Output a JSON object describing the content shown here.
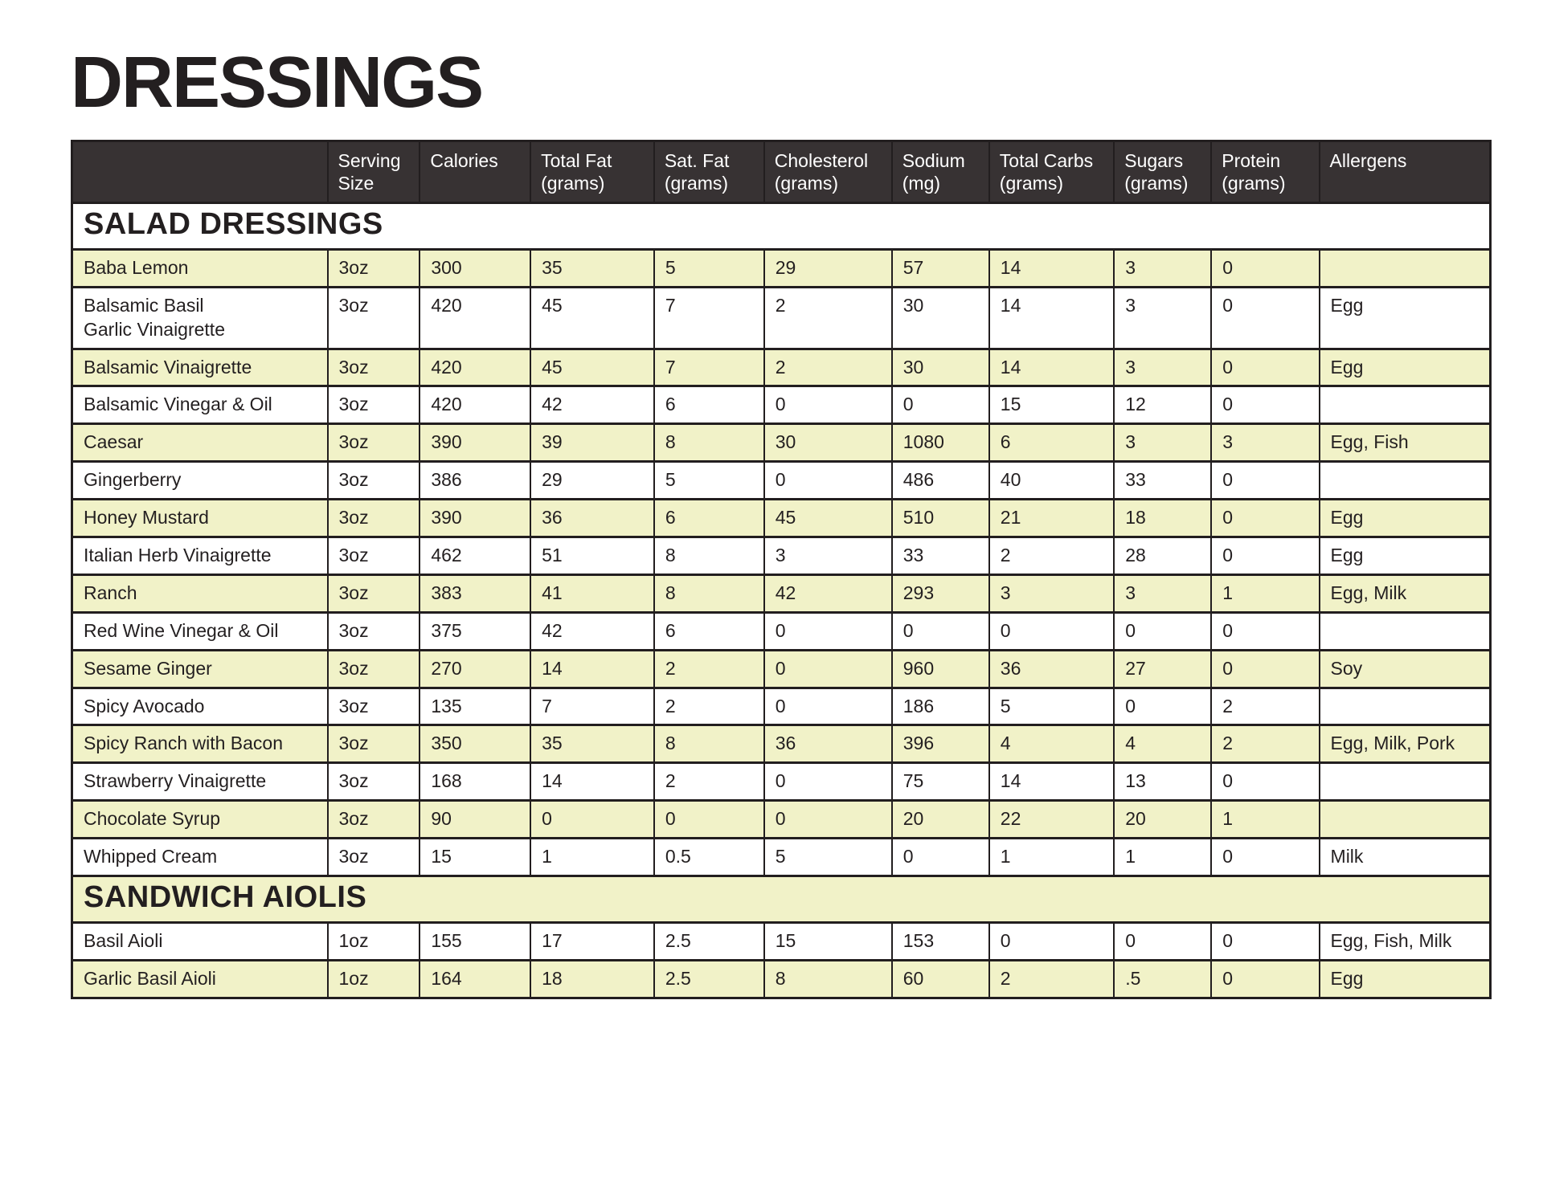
{
  "page_title": "DRESSINGS",
  "colors": {
    "header_bg": "#373233",
    "header_text": "#ffffff",
    "row_yellow": "#f1f2c8",
    "row_white": "#ffffff",
    "border": "#221e1f",
    "text": "#231f20"
  },
  "table": {
    "headers": [
      {
        "label": ""
      },
      {
        "label": "Serving Size"
      },
      {
        "label": "Calories"
      },
      {
        "label": "Total Fat (grams)"
      },
      {
        "label": "Sat. Fat (grams)"
      },
      {
        "label": "Cholesterol (grams)"
      },
      {
        "label": "Sodium (mg)"
      },
      {
        "label": "Total Carbs (grams)"
      },
      {
        "label": "Sugars (grams)"
      },
      {
        "label": "Protein (grams)"
      },
      {
        "label": "Allergens"
      }
    ],
    "column_keys": [
      "name",
      "serving_size",
      "calories",
      "total_fat",
      "sat_fat",
      "cholesterol",
      "sodium",
      "total_carbs",
      "sugars",
      "protein",
      "allergens"
    ],
    "sections": [
      {
        "label": "SALAD DRESSINGS",
        "rows": [
          {
            "name": "Baba Lemon",
            "serving_size": "3oz",
            "calories": "300",
            "total_fat": "35",
            "sat_fat": "5",
            "cholesterol": "29",
            "sodium": "57",
            "total_carbs": "14",
            "sugars": "3",
            "protein": "0",
            "allergens": ""
          },
          {
            "name": "Balsamic Basil\nGarlic Vinaigrette",
            "serving_size": "3oz",
            "calories": "420",
            "total_fat": "45",
            "sat_fat": "7",
            "cholesterol": "2",
            "sodium": "30",
            "total_carbs": "14",
            "sugars": "3",
            "protein": "0",
            "allergens": "Egg"
          },
          {
            "name": "Balsamic Vinaigrette",
            "serving_size": "3oz",
            "calories": "420",
            "total_fat": "45",
            "sat_fat": "7",
            "cholesterol": "2",
            "sodium": "30",
            "total_carbs": "14",
            "sugars": "3",
            "protein": "0",
            "allergens": "Egg"
          },
          {
            "name": "Balsamic Vinegar & Oil",
            "serving_size": "3oz",
            "calories": "420",
            "total_fat": "42",
            "sat_fat": "6",
            "cholesterol": "0",
            "sodium": "0",
            "total_carbs": "15",
            "sugars": "12",
            "protein": "0",
            "allergens": ""
          },
          {
            "name": "Caesar",
            "serving_size": "3oz",
            "calories": "390",
            "total_fat": "39",
            "sat_fat": "8",
            "cholesterol": "30",
            "sodium": "1080",
            "total_carbs": "6",
            "sugars": "3",
            "protein": "3",
            "allergens": "Egg, Fish"
          },
          {
            "name": "Gingerberry",
            "serving_size": "3oz",
            "calories": "386",
            "total_fat": "29",
            "sat_fat": "5",
            "cholesterol": "0",
            "sodium": "486",
            "total_carbs": "40",
            "sugars": "33",
            "protein": "0",
            "allergens": ""
          },
          {
            "name": "Honey Mustard",
            "serving_size": "3oz",
            "calories": "390",
            "total_fat": "36",
            "sat_fat": "6",
            "cholesterol": "45",
            "sodium": "510",
            "total_carbs": "21",
            "sugars": "18",
            "protein": "0",
            "allergens": "Egg"
          },
          {
            "name": "Italian Herb Vinaigrette",
            "serving_size": "3oz",
            "calories": "462",
            "total_fat": "51",
            "sat_fat": "8",
            "cholesterol": "3",
            "sodium": "33",
            "total_carbs": "2",
            "sugars": "28",
            "protein": "0",
            "allergens": "Egg"
          },
          {
            "name": "Ranch",
            "serving_size": "3oz",
            "calories": "383",
            "total_fat": "41",
            "sat_fat": "8",
            "cholesterol": "42",
            "sodium": "293",
            "total_carbs": "3",
            "sugars": "3",
            "protein": "1",
            "allergens": "Egg, Milk"
          },
          {
            "name": "Red Wine Vinegar & Oil",
            "serving_size": "3oz",
            "calories": "375",
            "total_fat": "42",
            "sat_fat": "6",
            "cholesterol": "0",
            "sodium": "0",
            "total_carbs": "0",
            "sugars": "0",
            "protein": "0",
            "allergens": ""
          },
          {
            "name": "Sesame Ginger",
            "serving_size": "3oz",
            "calories": "270",
            "total_fat": "14",
            "sat_fat": "2",
            "cholesterol": "0",
            "sodium": "960",
            "total_carbs": "36",
            "sugars": "27",
            "protein": "0",
            "allergens": "Soy"
          },
          {
            "name": "Spicy Avocado",
            "serving_size": "3oz",
            "calories": "135",
            "total_fat": "7",
            "sat_fat": "2",
            "cholesterol": "0",
            "sodium": "186",
            "total_carbs": "5",
            "sugars": "0",
            "protein": "2",
            "allergens": ""
          },
          {
            "name": "Spicy Ranch with Bacon",
            "serving_size": "3oz",
            "calories": "350",
            "total_fat": "35",
            "sat_fat": "8",
            "cholesterol": "36",
            "sodium": "396",
            "total_carbs": "4",
            "sugars": "4",
            "protein": "2",
            "allergens": "Egg, Milk, Pork"
          },
          {
            "name": "Strawberry Vinaigrette",
            "serving_size": "3oz",
            "calories": "168",
            "total_fat": "14",
            "sat_fat": "2",
            "cholesterol": "0",
            "sodium": "75",
            "total_carbs": "14",
            "sugars": "13",
            "protein": "0",
            "allergens": ""
          },
          {
            "name": "Chocolate Syrup",
            "serving_size": "3oz",
            "calories": "90",
            "total_fat": "0",
            "sat_fat": "0",
            "cholesterol": "0",
            "sodium": "20",
            "total_carbs": "22",
            "sugars": "20",
            "protein": "1",
            "allergens": ""
          },
          {
            "name": "Whipped Cream",
            "serving_size": "3oz",
            "calories": "15",
            "total_fat": "1",
            "sat_fat": "0.5",
            "cholesterol": "5",
            "sodium": "0",
            "total_carbs": "1",
            "sugars": "1",
            "protein": "0",
            "allergens": "Milk"
          }
        ]
      },
      {
        "label": "SANDWICH AIOLIS",
        "rows": [
          {
            "name": "Basil Aioli",
            "serving_size": "1oz",
            "calories": "155",
            "total_fat": "17",
            "sat_fat": "2.5",
            "cholesterol": "15",
            "sodium": "153",
            "total_carbs": "0",
            "sugars": "0",
            "protein": "0",
            "allergens": "Egg, Fish, Milk"
          },
          {
            "name": "Garlic Basil Aioli",
            "serving_size": "1oz",
            "calories": "164",
            "total_fat": "18",
            "sat_fat": "2.5",
            "cholesterol": "8",
            "sodium": "60",
            "total_carbs": "2",
            "sugars": ".5",
            "protein": "0",
            "allergens": "Egg"
          }
        ]
      }
    ]
  }
}
